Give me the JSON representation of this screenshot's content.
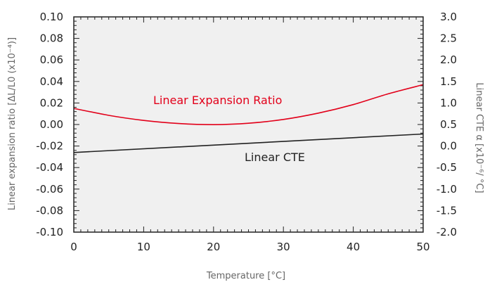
{
  "chart_data": {
    "type": "line",
    "title": "",
    "xlabel": "Temperature [°C]",
    "ylabel_left": "Linear expansion ratio [ΔL/L0 (x10⁻⁴)]",
    "ylabel_right": "Linear CTE α [x10⁻⁶/ °C]",
    "xlim": [
      0,
      50
    ],
    "ylim_left": [
      -0.1,
      0.1
    ],
    "ylim_right": [
      -2.0,
      3.0
    ],
    "x_ticks": [
      "0",
      "10",
      "20",
      "30",
      "40",
      "50"
    ],
    "y_left_ticks": [
      "0.10",
      "0.08",
      "0.06",
      "0.04",
      "0.02",
      "0.00",
      "-0.02",
      "-0.04",
      "-0.06",
      "-0.08",
      "-0.10"
    ],
    "y_right_ticks": [
      "3.0",
      "2.5",
      "2.0",
      "1.5",
      "1.0",
      "0.5",
      "0.0",
      "-0.5",
      "-1.0",
      "-1.5",
      "-2.0"
    ],
    "grid": false,
    "background": "#f0f0f0",
    "series": [
      {
        "name": "Linear Expansion Ratio",
        "axis": "left",
        "color": "#e2001a",
        "x": [
          0,
          5,
          10,
          15,
          20,
          25,
          30,
          35,
          40,
          45,
          50
        ],
        "y": [
          0.015,
          0.0085,
          0.0038,
          0.0009,
          -0.0001,
          0.0012,
          0.0047,
          0.0106,
          0.0185,
          0.0285,
          0.037
        ]
      },
      {
        "name": "Linear CTE",
        "axis": "right",
        "color": "#222222",
        "x": [
          0,
          50
        ],
        "y": [
          -0.15,
          0.28
        ]
      }
    ]
  }
}
